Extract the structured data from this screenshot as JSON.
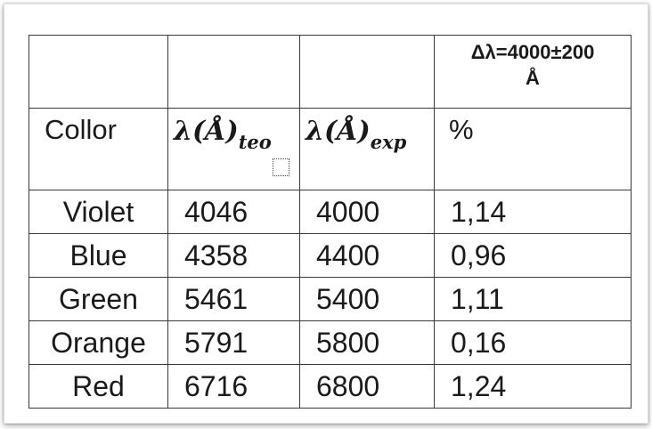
{
  "table": {
    "header_top": {
      "delta_line1": "Δλ=4000±200",
      "delta_line2": "Å"
    },
    "header": {
      "color_label": "Collor",
      "teo_lambda": "λ(Å)",
      "teo_sub": "teo",
      "exp_lambda": "λ(Å)",
      "exp_sub": "exp",
      "percent_label": "%"
    },
    "rows": [
      {
        "color": "Violet",
        "teo": "4046",
        "exp": "4000",
        "pct": "1,14"
      },
      {
        "color": "Blue",
        "teo": "4358",
        "exp": "4400",
        "pct": "0,96"
      },
      {
        "color": "Green",
        "teo": "5461",
        "exp": "5400",
        "pct": "1,11"
      },
      {
        "color": "Orange",
        "teo": "5791",
        "exp": "5800",
        "pct": "0,16"
      },
      {
        "color": "Red",
        "teo": "6716",
        "exp": "6800",
        "pct": "1,24"
      }
    ]
  }
}
